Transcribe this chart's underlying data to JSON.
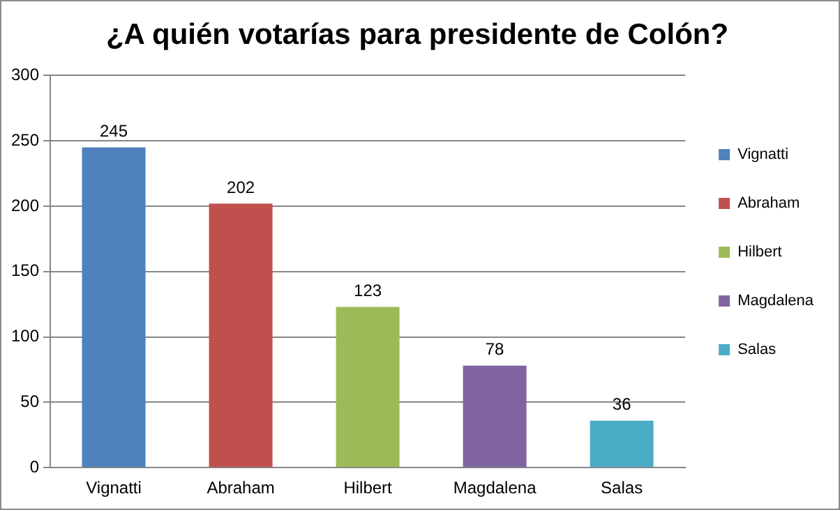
{
  "chart_data": {
    "type": "bar",
    "title": "¿A quién votarías para presidente de Colón?",
    "categories": [
      "Vignatti",
      "Abraham",
      "Hilbert",
      "Magdalena",
      "Salas"
    ],
    "series": [
      {
        "name": "Vignatti",
        "color": "#4f81bd",
        "values": [
          245,
          null,
          null,
          null,
          null
        ]
      },
      {
        "name": "Abraham",
        "color": "#c0504d",
        "values": [
          null,
          202,
          null,
          null,
          null
        ]
      },
      {
        "name": "Hilbert",
        "color": "#9bbb59",
        "values": [
          null,
          null,
          123,
          null,
          null
        ]
      },
      {
        "name": "Magdalena",
        "color": "#8064a2",
        "values": [
          null,
          null,
          null,
          78,
          null
        ]
      },
      {
        "name": "Salas",
        "color": "#4bacc6",
        "values": [
          null,
          null,
          null,
          null,
          36
        ]
      }
    ],
    "ylim": [
      0,
      300
    ],
    "yticks": [
      0,
      50,
      100,
      150,
      200,
      250,
      300
    ],
    "grid": "y",
    "legend": "right",
    "data_labels": true
  }
}
